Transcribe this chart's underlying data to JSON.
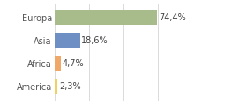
{
  "categories": [
    "Europa",
    "Asia",
    "Africa",
    "America"
  ],
  "values": [
    74.4,
    18.6,
    4.7,
    2.3
  ],
  "labels": [
    "74,4%",
    "18,6%",
    "4,7%",
    "2,3%"
  ],
  "bar_colors": [
    "#a8bb8a",
    "#6e8fc4",
    "#f0a868",
    "#f0d060"
  ],
  "background_color": "#ffffff",
  "xlim": [
    0,
    100
  ],
  "label_fontsize": 7.0,
  "tick_fontsize": 7.0,
  "grid_ticks": [
    0,
    25,
    50,
    75,
    100
  ],
  "grid_color": "#cccccc",
  "bar_height": 0.65
}
